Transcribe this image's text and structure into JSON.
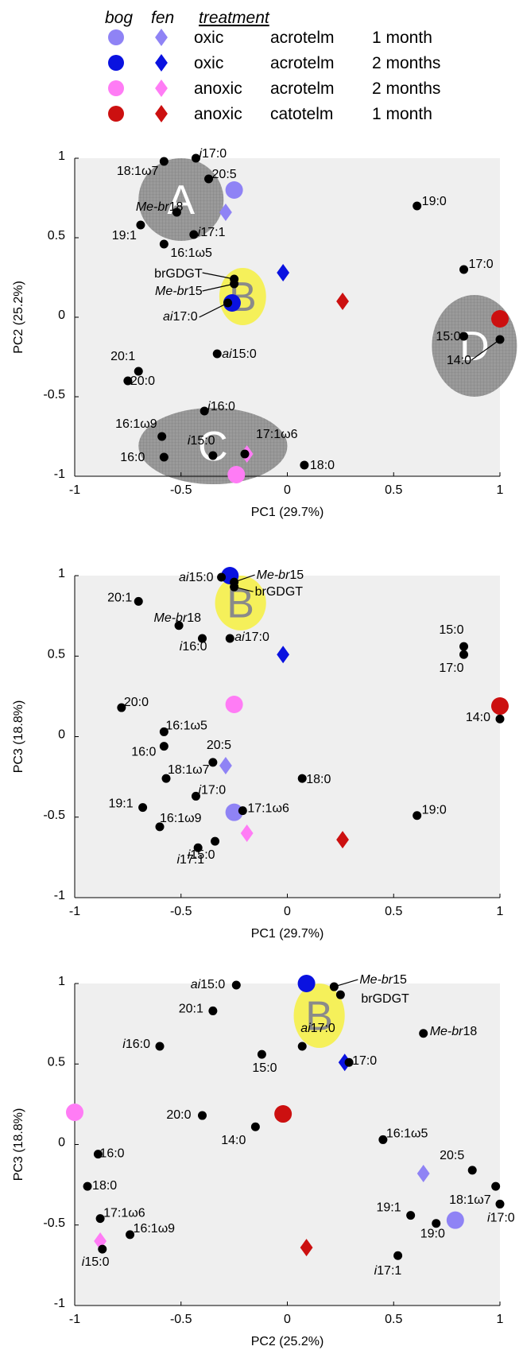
{
  "legend": {
    "header_bog": "bog",
    "header_fen": "fen",
    "header_treatment": "treatment",
    "rows": [
      {
        "color": "#8f83f5",
        "oxygen": "oxic",
        "layer": "acrotelm",
        "time": "1 month"
      },
      {
        "color": "#0a12e0",
        "oxygen": "oxic",
        "layer": "acrotelm",
        "time": "2 months"
      },
      {
        "color": "#ff7cf5",
        "oxygen": "anoxic",
        "layer": "acrotelm",
        "time": "2 months"
      },
      {
        "color": "#cc1010",
        "oxygen": "anoxic",
        "layer": "catotelm",
        "time": "1 month"
      }
    ]
  },
  "chart_data": [
    {
      "type": "scatter",
      "title": "",
      "xlabel": "PC1 (29.7%)",
      "ylabel": "PC2 (25.2%)",
      "xlim": [
        -1,
        1
      ],
      "ylim": [
        -1,
        1
      ],
      "xticks": [
        "-1",
        "-0.5",
        "0",
        "0.5",
        "1"
      ],
      "yticks": [
        "1",
        "0.5",
        "0",
        "-0.5",
        "-1"
      ],
      "grid": false,
      "clusters": [
        {
          "label": "A",
          "cx": -0.5,
          "cy": 0.74,
          "rx": 0.2,
          "ry": 0.26,
          "fill": "#9a9a9a"
        },
        {
          "label": "B",
          "cx": -0.21,
          "cy": 0.13,
          "rx": 0.11,
          "ry": 0.18,
          "fill": "#f5f05a"
        },
        {
          "label": "C",
          "cx": -0.35,
          "cy": -0.81,
          "rx": 0.35,
          "ry": 0.24,
          "fill": "#9a9a9a"
        },
        {
          "label": "D",
          "cx": 0.88,
          "cy": -0.18,
          "rx": 0.2,
          "ry": 0.32,
          "fill": "#9a9a9a"
        }
      ],
      "lipids": [
        {
          "label": "i17:0",
          "x": -0.43,
          "y": 1.0
        },
        {
          "label": "18:1ω7",
          "x": -0.58,
          "y": 0.98
        },
        {
          "label": "20:5",
          "x": -0.37,
          "y": 0.87
        },
        {
          "label": "Me-br18",
          "x": -0.52,
          "y": 0.66
        },
        {
          "label": "19:1",
          "x": -0.69,
          "y": 0.58
        },
        {
          "label": "i17:1",
          "x": -0.44,
          "y": 0.52
        },
        {
          "label": "16:1ω5",
          "x": -0.58,
          "y": 0.46
        },
        {
          "label": "brGDGT",
          "x": -0.25,
          "y": 0.24
        },
        {
          "label": "Me-br15",
          "x": -0.25,
          "y": 0.21
        },
        {
          "label": "ai17:0",
          "x": -0.28,
          "y": 0.09
        },
        {
          "label": "ai15:0",
          "x": -0.33,
          "y": -0.23
        },
        {
          "label": "20:1",
          "x": -0.7,
          "y": -0.34
        },
        {
          "label": "20:0",
          "x": -0.75,
          "y": -0.4
        },
        {
          "label": "i16:0",
          "x": -0.39,
          "y": -0.59
        },
        {
          "label": "16:1ω9",
          "x": -0.59,
          "y": -0.75
        },
        {
          "label": "i15:0",
          "x": -0.35,
          "y": -0.87
        },
        {
          "label": "16:0",
          "x": -0.58,
          "y": -0.88
        },
        {
          "label": "17:1ω6",
          "x": -0.2,
          "y": -0.86
        },
        {
          "label": "18:0",
          "x": 0.08,
          "y": -0.93
        },
        {
          "label": "19:0",
          "x": 0.61,
          "y": 0.7
        },
        {
          "label": "17:0",
          "x": 0.83,
          "y": 0.3
        },
        {
          "label": "15:0",
          "x": 0.83,
          "y": -0.12
        },
        {
          "label": "14:0",
          "x": 1.0,
          "y": -0.14
        }
      ],
      "samples": [
        {
          "group": "bog oxic acrotelm 1 month",
          "shape": "circle",
          "color": "#8f83f5",
          "x": -0.25,
          "y": 0.8
        },
        {
          "group": "fen oxic acrotelm 1 month",
          "shape": "diamond",
          "color": "#8f83f5",
          "x": -0.29,
          "y": 0.66
        },
        {
          "group": "bog oxic acrotelm 2 months",
          "shape": "circle",
          "color": "#0a12e0",
          "x": -0.26,
          "y": 0.09
        },
        {
          "group": "fen oxic acrotelm 2 months",
          "shape": "diamond",
          "color": "#0a12e0",
          "x": -0.02,
          "y": 0.28
        },
        {
          "group": "bog anoxic acrotelm 2 months",
          "shape": "circle",
          "color": "#ff7cf5",
          "x": -0.24,
          "y": -0.99
        },
        {
          "group": "fen anoxic acrotelm 2 months",
          "shape": "diamond",
          "color": "#ff7cf5",
          "x": -0.19,
          "y": -0.86
        },
        {
          "group": "bog anoxic catotelm 1 month",
          "shape": "circle",
          "color": "#cc1010",
          "x": 1.0,
          "y": -0.01
        },
        {
          "group": "fen anoxic catotelm 1 month",
          "shape": "diamond",
          "color": "#cc1010",
          "x": 0.26,
          "y": 0.1
        }
      ]
    },
    {
      "type": "scatter",
      "title": "",
      "xlabel": "PC1 (29.7%)",
      "ylabel": "PC3 (18.8%)",
      "xlim": [
        -1,
        1
      ],
      "ylim": [
        -1,
        1
      ],
      "xticks": [
        "-1",
        "-0.5",
        "0",
        "0.5",
        "1"
      ],
      "yticks": [
        "1",
        "0.5",
        "0",
        "-0.5",
        "-1"
      ],
      "grid": false,
      "clusters": [
        {
          "label": "B",
          "cx": -0.22,
          "cy": 0.83,
          "rx": 0.12,
          "ry": 0.17,
          "fill": "#f5f05a"
        }
      ],
      "lipids": [
        {
          "label": "ai15:0",
          "x": -0.31,
          "y": 0.99
        },
        {
          "label": "Me-br15",
          "x": -0.25,
          "y": 0.96
        },
        {
          "label": "brGDGT",
          "x": -0.25,
          "y": 0.93
        },
        {
          "label": "20:1",
          "x": -0.7,
          "y": 0.84
        },
        {
          "label": "Me-br18",
          "x": -0.51,
          "y": 0.69
        },
        {
          "label": "i16:0",
          "x": -0.4,
          "y": 0.61
        },
        {
          "label": "ai17:0",
          "x": -0.27,
          "y": 0.61
        },
        {
          "label": "15:0",
          "x": 0.83,
          "y": 0.56
        },
        {
          "label": "17:0",
          "x": 0.83,
          "y": 0.51
        },
        {
          "label": "20:0",
          "x": -0.78,
          "y": 0.18
        },
        {
          "label": "14:0",
          "x": 1.0,
          "y": 0.11
        },
        {
          "label": "16:1ω5",
          "x": -0.58,
          "y": 0.03
        },
        {
          "label": "16:0",
          "x": -0.58,
          "y": -0.06
        },
        {
          "label": "20:5",
          "x": -0.35,
          "y": -0.16
        },
        {
          "label": "18:1ω7",
          "x": -0.57,
          "y": -0.26
        },
        {
          "label": "18:0",
          "x": 0.07,
          "y": -0.26
        },
        {
          "label": "i17:0",
          "x": -0.43,
          "y": -0.37
        },
        {
          "label": "17:1ω6",
          "x": -0.21,
          "y": -0.46
        },
        {
          "label": "19:1",
          "x": -0.68,
          "y": -0.44
        },
        {
          "label": "19:0",
          "x": 0.61,
          "y": -0.49
        },
        {
          "label": "16:1ω9",
          "x": -0.6,
          "y": -0.56
        },
        {
          "label": "i15:0",
          "x": -0.34,
          "y": -0.65
        },
        {
          "label": "i17:1",
          "x": -0.42,
          "y": -0.69
        }
      ],
      "samples": [
        {
          "group": "bog oxic acrotelm 1 month",
          "shape": "circle",
          "color": "#8f83f5",
          "x": -0.25,
          "y": -0.47
        },
        {
          "group": "fen oxic acrotelm 1 month",
          "shape": "diamond",
          "color": "#8f83f5",
          "x": -0.29,
          "y": -0.18
        },
        {
          "group": "bog oxic acrotelm 2 months",
          "shape": "circle",
          "color": "#0a12e0",
          "x": -0.27,
          "y": 1.0
        },
        {
          "group": "fen oxic acrotelm 2 months",
          "shape": "diamond",
          "color": "#0a12e0",
          "x": -0.02,
          "y": 0.51
        },
        {
          "group": "bog anoxic acrotelm 2 months",
          "shape": "circle",
          "color": "#ff7cf5",
          "x": -0.25,
          "y": 0.2
        },
        {
          "group": "fen anoxic acrotelm 2 months",
          "shape": "diamond",
          "color": "#ff7cf5",
          "x": -0.19,
          "y": -0.6
        },
        {
          "group": "bog anoxic catotelm 1 month",
          "shape": "circle",
          "color": "#cc1010",
          "x": 1.0,
          "y": 0.19
        },
        {
          "group": "fen anoxic catotelm 1 month",
          "shape": "diamond",
          "color": "#cc1010",
          "x": 0.26,
          "y": -0.64
        }
      ]
    },
    {
      "type": "scatter",
      "title": "",
      "xlabel": "PC2 (25.2%)",
      "ylabel": "PC3 (18.8%)",
      "xlim": [
        -1,
        1
      ],
      "ylim": [
        -1,
        1
      ],
      "xticks": [
        "-1",
        "-0.5",
        "0",
        "0.5",
        "1"
      ],
      "yticks": [
        "1",
        "0.5",
        "0",
        "-0.5",
        "-1"
      ],
      "grid": false,
      "clusters": [
        {
          "label": "B",
          "cx": 0.15,
          "cy": 0.8,
          "rx": 0.12,
          "ry": 0.2,
          "fill": "#f5f05a"
        }
      ],
      "lipids": [
        {
          "label": "ai15:0",
          "x": -0.24,
          "y": 0.99
        },
        {
          "label": "Me-br15",
          "x": 0.22,
          "y": 0.98
        },
        {
          "label": "brGDGT",
          "x": 0.25,
          "y": 0.93
        },
        {
          "label": "20:1",
          "x": -0.35,
          "y": 0.83
        },
        {
          "label": "Me-br18",
          "x": 0.64,
          "y": 0.69
        },
        {
          "label": "i16:0",
          "x": -0.6,
          "y": 0.61
        },
        {
          "label": "ai17:0",
          "x": 0.07,
          "y": 0.61
        },
        {
          "label": "15:0",
          "x": -0.12,
          "y": 0.56
        },
        {
          "label": "17:0",
          "x": 0.29,
          "y": 0.51
        },
        {
          "label": "20:0",
          "x": -0.4,
          "y": 0.18
        },
        {
          "label": "14:0",
          "x": -0.15,
          "y": 0.11
        },
        {
          "label": "16:1ω5",
          "x": 0.45,
          "y": 0.03
        },
        {
          "label": "16:0",
          "x": -0.89,
          "y": -0.06
        },
        {
          "label": "20:5",
          "x": 0.87,
          "y": -0.16
        },
        {
          "label": "18:0",
          "x": -0.94,
          "y": -0.26
        },
        {
          "label": "18:1ω7",
          "x": 0.98,
          "y": -0.26
        },
        {
          "label": "i17:0",
          "x": 1.0,
          "y": -0.37
        },
        {
          "label": "19:1",
          "x": 0.58,
          "y": -0.44
        },
        {
          "label": "17:1ω6",
          "x": -0.88,
          "y": -0.46
        },
        {
          "label": "19:0",
          "x": 0.7,
          "y": -0.49
        },
        {
          "label": "16:1ω9",
          "x": -0.74,
          "y": -0.56
        },
        {
          "label": "i15:0",
          "x": -0.87,
          "y": -0.65
        },
        {
          "label": "i17:1",
          "x": 0.52,
          "y": -0.69
        }
      ],
      "samples": [
        {
          "group": "bog oxic acrotelm 1 month",
          "shape": "circle",
          "color": "#8f83f5",
          "x": 0.79,
          "y": -0.47
        },
        {
          "group": "fen oxic acrotelm 1 month",
          "shape": "diamond",
          "color": "#8f83f5",
          "x": 0.64,
          "y": -0.18
        },
        {
          "group": "bog oxic acrotelm 2 months",
          "shape": "circle",
          "color": "#0a12e0",
          "x": 0.09,
          "y": 1.0
        },
        {
          "group": "fen oxic acrotelm 2 months",
          "shape": "diamond",
          "color": "#0a12e0",
          "x": 0.27,
          "y": 0.51
        },
        {
          "group": "bog anoxic acrotelm 2 months",
          "shape": "circle",
          "color": "#ff7cf5",
          "x": -1.0,
          "y": 0.2
        },
        {
          "group": "fen anoxic acrotelm 2 months",
          "shape": "diamond",
          "color": "#ff7cf5",
          "x": -0.88,
          "y": -0.6
        },
        {
          "group": "bog anoxic catotelm 1 month",
          "shape": "circle",
          "color": "#cc1010",
          "x": -0.02,
          "y": 0.19
        },
        {
          "group": "fen anoxic catotelm 1 month",
          "shape": "diamond",
          "color": "#cc1010",
          "x": 0.09,
          "y": -0.64
        }
      ]
    }
  ]
}
